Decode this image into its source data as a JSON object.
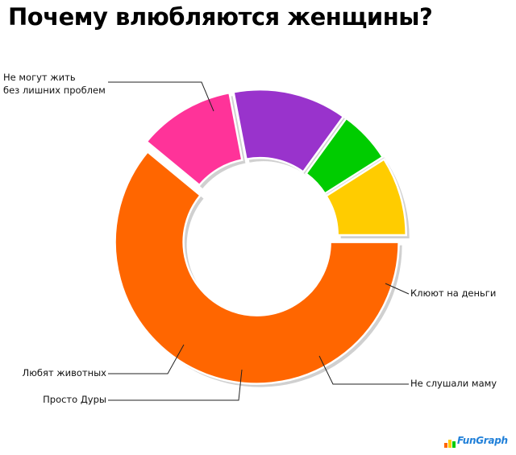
{
  "chart_data": {
    "type": "pie",
    "variant": "donut",
    "title": "Почему влюбляются женщины?",
    "exploded": true,
    "slices": [
      {
        "label": "Не могут жить без лишних проблем",
        "label_lines": [
          "Не могут жить",
          "без лишних проблем"
        ],
        "value": 61,
        "color": "#FF6600"
      },
      {
        "label": "Клюют на деньги",
        "label_lines": [
          "Клюют на деньги"
        ],
        "value": 11,
        "color": "#FF3399"
      },
      {
        "label": "Не слушали маму",
        "label_lines": [
          "Не слушали маму"
        ],
        "value": 13,
        "color": "#9933CC"
      },
      {
        "label": "Просто Дуры",
        "label_lines": [
          "Просто Дуры"
        ],
        "value": 6,
        "color": "#00CC00"
      },
      {
        "label": "Любят животных",
        "label_lines": [
          "Любят животных"
        ],
        "value": 9,
        "color": "#FFCC00"
      }
    ]
  },
  "watermark": {
    "text": "FunGraph",
    "bar_colors": [
      "#FF6600",
      "#FFCC00",
      "#00CC00",
      "#1f7fd8"
    ]
  }
}
